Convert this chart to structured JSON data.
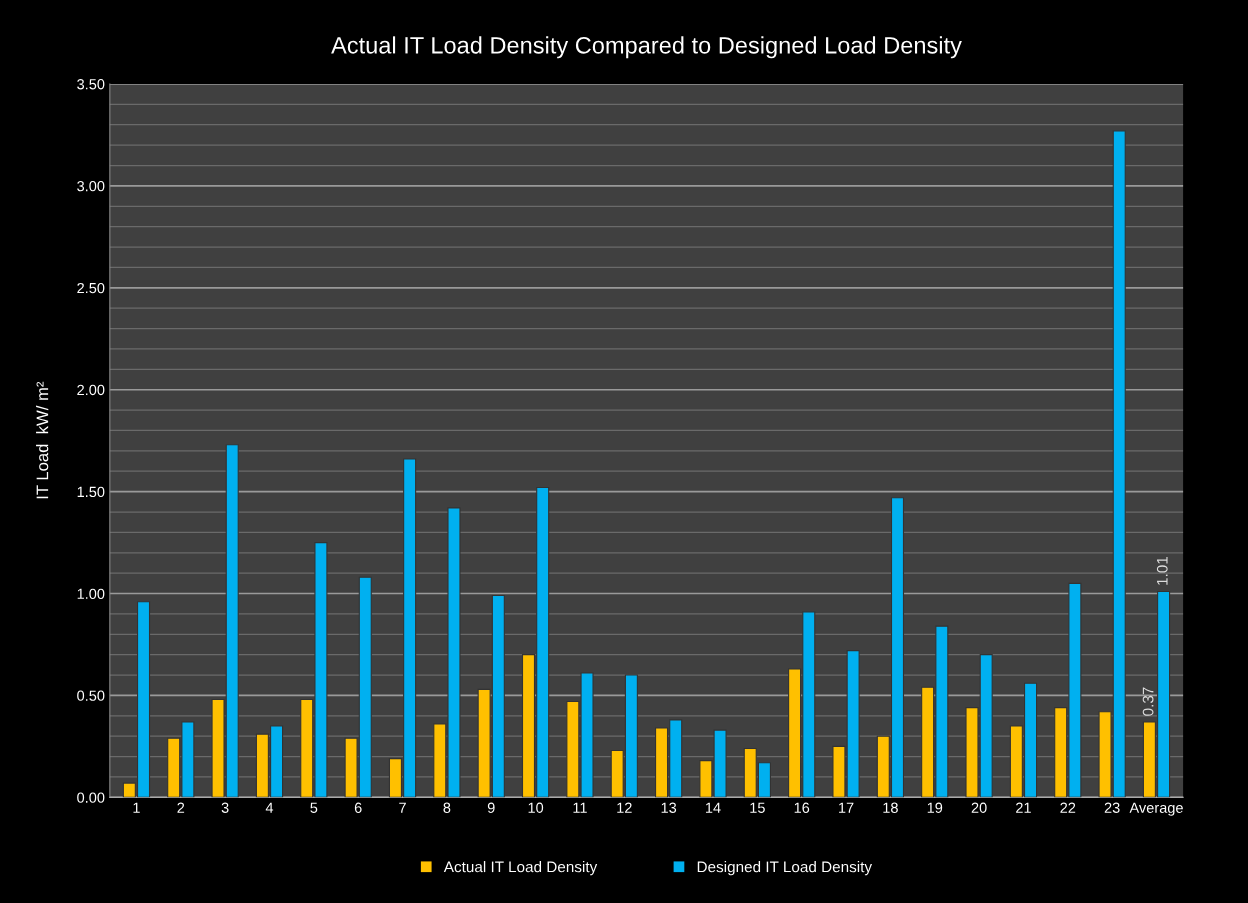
{
  "chart_data": {
    "type": "bar",
    "title": "Actual IT Load Density Compared to Designed Load Density",
    "ylabel": "IT Load  kW/ m²",
    "categories": [
      "1",
      "2",
      "3",
      "4",
      "5",
      "6",
      "7",
      "8",
      "9",
      "10",
      "11",
      "12",
      "13",
      "14",
      "15",
      "16",
      "17",
      "18",
      "19",
      "20",
      "21",
      "22",
      "23",
      "Average"
    ],
    "series": [
      {
        "name": "Actual IT Load Density",
        "color": "#ffc000",
        "values": [
          0.07,
          0.29,
          0.48,
          0.31,
          0.48,
          0.29,
          0.19,
          0.36,
          0.53,
          0.7,
          0.47,
          0.23,
          0.34,
          0.18,
          0.24,
          0.63,
          0.25,
          0.3,
          0.54,
          0.44,
          0.35,
          0.44,
          0.42,
          0.37
        ],
        "value_labels": [
          null,
          null,
          null,
          null,
          null,
          null,
          null,
          null,
          null,
          null,
          null,
          null,
          null,
          null,
          null,
          null,
          null,
          null,
          null,
          null,
          null,
          null,
          null,
          "0.37"
        ]
      },
      {
        "name": "Designed IT Load Density",
        "color": "#00b0f0",
        "values": [
          0.96,
          0.37,
          1.73,
          0.35,
          1.25,
          1.08,
          1.66,
          1.42,
          0.99,
          1.52,
          0.61,
          0.6,
          0.38,
          0.33,
          0.17,
          0.91,
          0.72,
          1.47,
          0.84,
          0.7,
          0.56,
          1.05,
          3.27,
          1.01
        ],
        "value_labels": [
          null,
          null,
          null,
          null,
          null,
          null,
          null,
          null,
          null,
          null,
          null,
          null,
          null,
          null,
          null,
          null,
          null,
          null,
          null,
          null,
          null,
          null,
          null,
          "1.01"
        ]
      }
    ],
    "ylim": [
      0,
      3.5
    ],
    "yticks": [
      {
        "value": 0,
        "label": "0.00"
      },
      {
        "value": 0.1,
        "label": null
      },
      {
        "value": 0.2,
        "label": null
      },
      {
        "value": 0.3,
        "label": null
      },
      {
        "value": 0.4,
        "label": null
      },
      {
        "value": 0.5,
        "label": "0.50"
      },
      {
        "value": 0.6,
        "label": null
      },
      {
        "value": 0.7,
        "label": null
      },
      {
        "value": 0.8,
        "label": null
      },
      {
        "value": 0.9,
        "label": null
      },
      {
        "value": 1.0,
        "label": "1.00"
      },
      {
        "value": 1.1,
        "label": null
      },
      {
        "value": 1.2,
        "label": null
      },
      {
        "value": 1.3,
        "label": null
      },
      {
        "value": 1.4,
        "label": null
      },
      {
        "value": 1.5,
        "label": "1.50"
      },
      {
        "value": 1.6,
        "label": null
      },
      {
        "value": 1.7,
        "label": null
      },
      {
        "value": 1.8,
        "label": null
      },
      {
        "value": 1.9,
        "label": null
      },
      {
        "value": 2.0,
        "label": "2.00"
      },
      {
        "value": 2.1,
        "label": null
      },
      {
        "value": 2.2,
        "label": null
      },
      {
        "value": 2.3,
        "label": null
      },
      {
        "value": 2.4,
        "label": null
      },
      {
        "value": 2.5,
        "label": "2.50"
      },
      {
        "value": 2.6,
        "label": null
      },
      {
        "value": 2.7,
        "label": null
      },
      {
        "value": 2.8,
        "label": null
      },
      {
        "value": 2.9,
        "label": null
      },
      {
        "value": 3.0,
        "label": "3.00"
      },
      {
        "value": 3.1,
        "label": null
      },
      {
        "value": 3.2,
        "label": null
      },
      {
        "value": 3.3,
        "label": null
      },
      {
        "value": 3.4,
        "label": null
      },
      {
        "value": 3.5,
        "label": "3.50"
      }
    ],
    "grid": "y",
    "legend": "bottom"
  }
}
